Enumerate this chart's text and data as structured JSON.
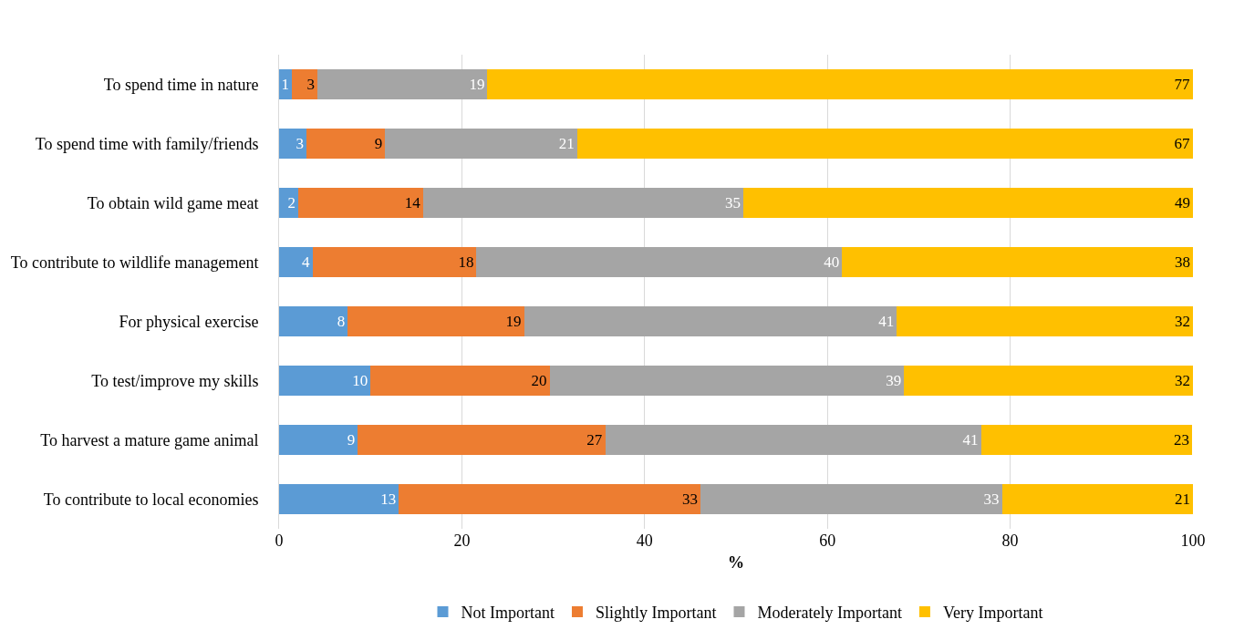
{
  "chart_data": {
    "type": "bar",
    "orientation": "horizontal",
    "stacked": true,
    "xlabel": "%",
    "categories": [
      "To spend time in nature",
      "To spend time with family/friends",
      "To obtain wild game meat",
      "To contribute to wildlife management",
      "For physical exercise",
      "To test/improve my skills",
      "To harvest a mature game animal",
      "To contribute to local economies"
    ],
    "series": [
      {
        "name": "Not Important",
        "color": "#5b9bd5",
        "values": [
          1.4,
          3,
          2.1,
          3.7,
          7.5,
          10,
          8.6,
          13.1
        ],
        "value_labels": [
          "1",
          "3",
          "2",
          "4",
          "8",
          "10",
          "9",
          "13"
        ]
      },
      {
        "name": "Slightly Important",
        "color": "#ed7d31",
        "values": [
          2.8,
          8.6,
          13.7,
          17.9,
          19.3,
          19.6,
          27.1,
          33
        ],
        "value_labels": [
          "3",
          "9",
          "14",
          "18",
          "19",
          "20",
          "27",
          "33"
        ]
      },
      {
        "name": "Moderately Important",
        "color": "#a5a5a5",
        "values": [
          18.6,
          21,
          35,
          40,
          40.8,
          38.8,
          41.1,
          33
        ],
        "value_labels": [
          "19",
          "21",
          "35",
          "40",
          "41",
          "39",
          "41",
          "33"
        ]
      },
      {
        "name": "Very Important",
        "color": "#ffc000",
        "values": [
          77.2,
          67.4,
          49.2,
          38.4,
          32.4,
          31.6,
          23.1,
          20.9
        ],
        "value_labels": [
          "77",
          "67",
          "49",
          "38",
          "32",
          "32",
          "23",
          "21"
        ]
      }
    ],
    "xlim": [
      0,
      100
    ],
    "xticks": [
      0,
      20,
      40,
      60,
      80,
      100
    ],
    "grid": "x",
    "legend": "bottom"
  }
}
